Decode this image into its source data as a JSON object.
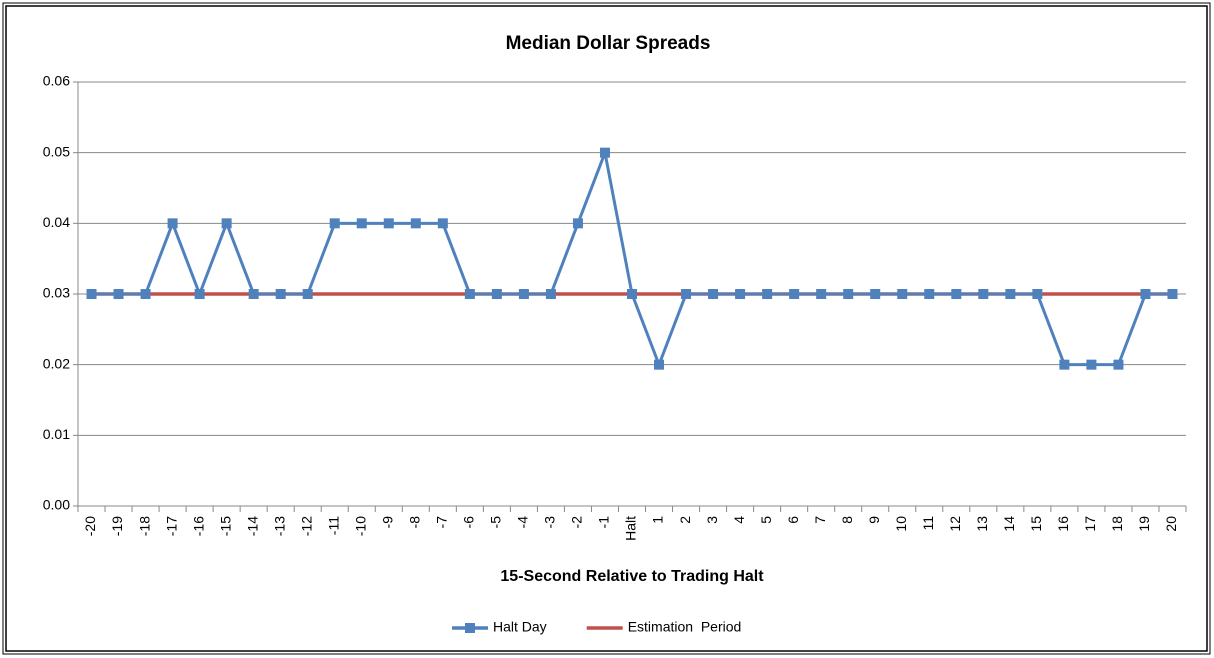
{
  "chart_data": {
    "type": "line",
    "title": "Median Dollar Spreads",
    "x_label": "15-Second Relative to Trading Halt",
    "categories": [
      "-20",
      "-19",
      "-18",
      "-17",
      "-16",
      "-15",
      "-14",
      "-13",
      "-12",
      "-11",
      "-10",
      "-9",
      "-8",
      "-7",
      "-6",
      "-5",
      "-4",
      "-3",
      "-2",
      "-1",
      "Halt",
      "1",
      "2",
      "3",
      "4",
      "5",
      "6",
      "7",
      "8",
      "9",
      "10",
      "11",
      "12",
      "13",
      "14",
      "15",
      "16",
      "17",
      "18",
      "19",
      "20"
    ],
    "series": [
      {
        "name": "Halt Day",
        "color": "#4f81bd",
        "marker": "square",
        "values": [
          0.03,
          0.03,
          0.03,
          0.04,
          0.03,
          0.04,
          0.03,
          0.03,
          0.03,
          0.04,
          0.04,
          0.04,
          0.04,
          0.04,
          0.03,
          0.03,
          0.03,
          0.03,
          0.04,
          0.05,
          0.03,
          0.02,
          0.03,
          0.03,
          0.03,
          0.03,
          0.03,
          0.03,
          0.03,
          0.03,
          0.03,
          0.03,
          0.03,
          0.03,
          0.03,
          0.03,
          0.02,
          0.02,
          0.02,
          0.03,
          0.03
        ]
      },
      {
        "name": "Estimation  Period",
        "color": "#c0504d",
        "values": [
          0.03,
          0.03,
          0.03,
          0.03,
          0.03,
          0.03,
          0.03,
          0.03,
          0.03,
          0.03,
          0.03,
          0.03,
          0.03,
          0.03,
          0.03,
          0.03,
          0.03,
          0.03,
          0.03,
          0.03,
          0.03,
          0.03,
          0.03,
          0.03,
          0.03,
          0.03,
          0.03,
          0.03,
          0.03,
          0.03,
          0.03,
          0.03,
          0.03,
          0.03,
          0.03,
          0.03,
          0.03,
          0.03,
          0.03,
          0.03,
          0.03
        ]
      }
    ],
    "ylim": [
      0,
      0.06
    ],
    "yticks": [
      {
        "value": 0,
        "label": "0.00"
      },
      0.01,
      0.02,
      0.03,
      0.04,
      0.05,
      0.06
    ],
    "grid": true,
    "legend": "bottom"
  }
}
